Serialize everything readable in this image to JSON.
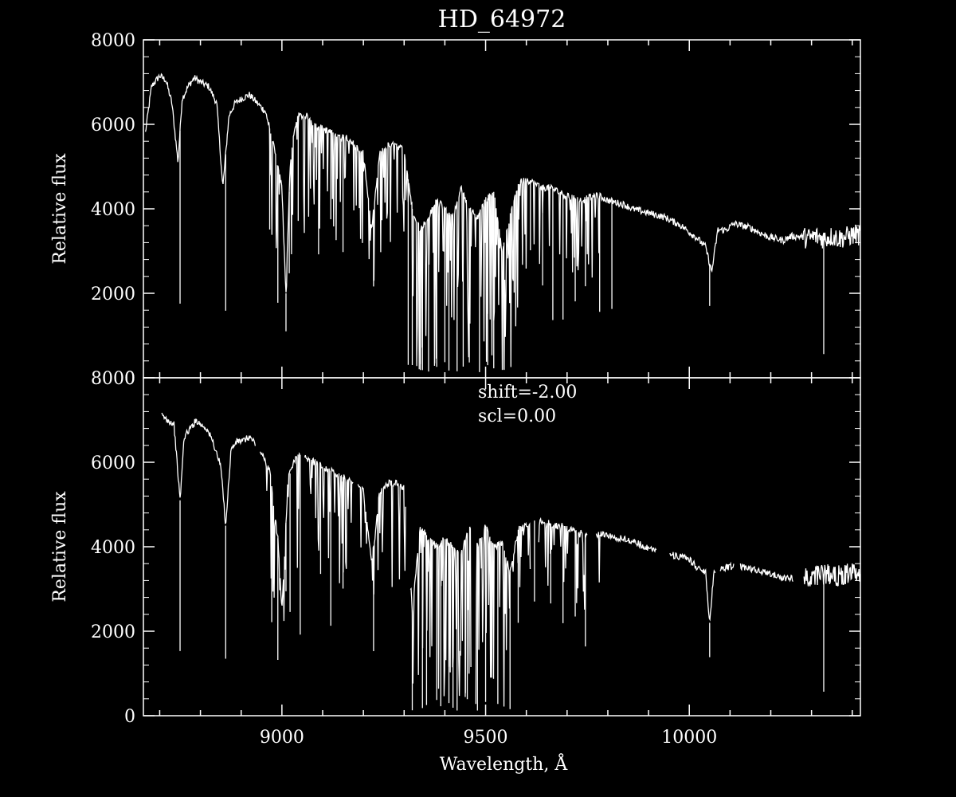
{
  "chart_data": [
    {
      "type": "line",
      "title": "HD_64972",
      "xlabel": "",
      "ylabel": "Relative flux",
      "xlim": [
        8660,
        10420
      ],
      "ylim": [
        0,
        8000
      ],
      "y_ticks": [
        "0",
        "2000",
        "4000",
        "6000",
        "8000"
      ],
      "x_ticks": [],
      "axes_frame": "white",
      "series": [
        {
          "x": [
            8665,
            8680,
            8700,
            8715,
            8730,
            8745,
            8755,
            8770,
            8785,
            8800,
            8820,
            8840,
            8855,
            8870,
            8885,
            8900,
            8920,
            8940,
            8960,
            8980,
            9000,
            9010,
            9020,
            9030,
            9040,
            9060,
            9080,
            9100,
            9120,
            9140,
            9160,
            9180,
            9200,
            9220,
            9240,
            9260,
            9280,
            9300,
            9320,
            9340,
            9360,
            9380,
            9400,
            9420,
            9440,
            9460,
            9480,
            9500,
            9520,
            9540,
            9560,
            9580,
            9600,
            9620,
            9640,
            9660,
            9680,
            9700,
            9720,
            9740,
            9760,
            9780,
            9800,
            9820,
            9840,
            9860,
            9880,
            9900,
            9920,
            9940,
            9960,
            9980,
            10000,
            10020,
            10040,
            10055,
            10070,
            10090,
            10110,
            10130,
            10150,
            10170,
            10190,
            10210,
            10230,
            10250,
            10270,
            10290,
            10310,
            10330,
            10350,
            10370,
            10390,
            10410,
            10420
          ],
          "y": [
            5800,
            6900,
            7150,
            7050,
            6500,
            5100,
            6600,
            6900,
            7100,
            7000,
            6900,
            6500,
            4500,
            6200,
            6500,
            6600,
            6700,
            6500,
            6300,
            5500,
            4500,
            2000,
            5000,
            5800,
            6200,
            6200,
            6000,
            5900,
            5800,
            5700,
            5700,
            5500,
            5300,
            3500,
            5300,
            5500,
            5500,
            5400,
            4000,
            3500,
            3800,
            4200,
            4000,
            3800,
            4500,
            4000,
            3800,
            4200,
            4400,
            3000,
            3800,
            4600,
            4700,
            4600,
            4500,
            4500,
            4400,
            4300,
            4250,
            4200,
            4300,
            4300,
            4200,
            4150,
            4100,
            4000,
            3950,
            3900,
            3850,
            3800,
            3700,
            3600,
            3450,
            3300,
            3100,
            2500,
            3500,
            3500,
            3650,
            3600,
            3550,
            3450,
            3350,
            3300,
            3250,
            3350,
            3350,
            3300,
            3350,
            3300,
            3350,
            3300,
            3350,
            3400,
            3350
          ]
        }
      ],
      "absorption_lines": [
        8750,
        8862,
        8970,
        8990,
        9010,
        9018,
        9040,
        9090,
        9120,
        9150,
        9225,
        9310,
        9320,
        9340,
        9345,
        9360,
        9375,
        9380,
        9400,
        9410,
        9430,
        9445,
        9460,
        9485,
        9505,
        9520,
        9545,
        9570,
        9610,
        9640,
        9665,
        9690,
        9720,
        9745,
        9780,
        9810,
        10050,
        10330
      ],
      "gaps": []
    },
    {
      "type": "line",
      "title": "",
      "xlabel": "Wavelength, Å",
      "ylabel": "Relative flux",
      "xlim": [
        8660,
        10420
      ],
      "ylim": [
        0,
        8000
      ],
      "y_ticks": [
        "0",
        "2000",
        "4000",
        "6000",
        "8000"
      ],
      "x_ticks": [
        "9000",
        "9500",
        "10000"
      ],
      "annotations": [
        "shift=-2.00",
        "scl=0.00"
      ],
      "series": [
        {
          "x": [
            8705,
            8720,
            8735,
            8750,
            8760,
            8775,
            8790,
            8800,
            8815,
            8830,
            8850,
            8862,
            8875,
            8890,
            8905,
            8920,
            8930,
            8950,
            8970,
            8990,
            9000,
            9015,
            9030,
            9040,
            9060,
            9080,
            9100,
            9120,
            9140,
            9160,
            9180,
            9200,
            9220,
            9240,
            9260,
            9280,
            9300,
            9320,
            9340,
            9360,
            9380,
            9400,
            9420,
            9440,
            9460,
            9480,
            9500,
            9520,
            9540,
            9560,
            9580,
            9600,
            9625,
            9650,
            9670,
            9690,
            9710,
            9730,
            9750,
            9770,
            9790,
            9810,
            9830,
            9850,
            9870,
            9890,
            9910,
            9930,
            9960,
            9980,
            10000,
            10020,
            10040,
            10050,
            10060,
            10080,
            10120,
            10140,
            10160,
            10180,
            10200,
            10220,
            10240,
            10260,
            10280,
            10300,
            10320,
            10340,
            10360,
            10380,
            10400,
            10420
          ],
          "y": [
            7100,
            7000,
            6900,
            5100,
            6600,
            6800,
            7000,
            6900,
            6800,
            6500,
            5900,
            4500,
            6300,
            6500,
            6500,
            6600,
            6500,
            6200,
            5800,
            4200,
            2500,
            5600,
            6000,
            6200,
            6100,
            6000,
            5900,
            5800,
            5700,
            5600,
            5500,
            5300,
            3600,
            5300,
            5500,
            5500,
            5400,
            2500,
            4500,
            4200,
            4000,
            4200,
            4000,
            3800,
            4500,
            4000,
            4500,
            4000,
            4100,
            3400,
            4400,
            4500,
            4650,
            4600,
            4500,
            4500,
            4400,
            4350,
            4300,
            4250,
            4300,
            4250,
            4200,
            4150,
            4100,
            4000,
            3950,
            3900,
            3800,
            3750,
            3700,
            3500,
            3400,
            2200,
            3400,
            3500,
            3550,
            3500,
            3450,
            3400,
            3350,
            3300,
            3250,
            3250,
            3300,
            3300,
            3350,
            3350,
            3300,
            3350,
            3400,
            3350
          ]
        }
      ],
      "absorption_lines": [
        8750,
        8862,
        8975,
        8990,
        9010,
        9020,
        9045,
        9095,
        9120,
        9150,
        9225,
        9320,
        9345,
        9355,
        9380,
        9390,
        9410,
        9420,
        9430,
        9450,
        9455,
        9480,
        9500,
        9530,
        9560,
        9580,
        9620,
        9660,
        9690,
        9720,
        9745,
        10050,
        10330
      ],
      "gaps": [
        [
          8935,
          8945
        ],
        [
          9045,
          9055
        ],
        [
          9175,
          9185
        ],
        [
          9305,
          9315
        ],
        [
          9465,
          9475
        ],
        [
          9610,
          9630
        ],
        [
          9750,
          9770
        ],
        [
          9920,
          9950
        ],
        [
          10065,
          10075
        ],
        [
          10110,
          10125
        ],
        [
          10255,
          10280
        ]
      ]
    }
  ]
}
